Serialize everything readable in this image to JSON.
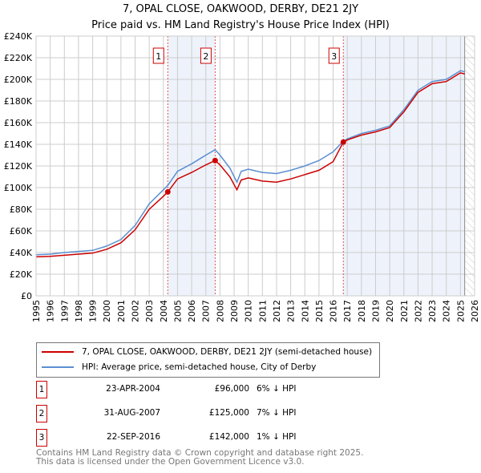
{
  "title": "7, OPAL CLOSE, OAKWOOD, DERBY, DE21 2JY",
  "subtitle": "Price paid vs. HM Land Registry's House Price Index (HPI)",
  "chart_data": {
    "type": "line",
    "ylim": [
      0,
      240000
    ],
    "xlim": [
      1995,
      2026
    ],
    "y_ticks": [
      "£0",
      "£20K",
      "£40K",
      "£60K",
      "£80K",
      "£100K",
      "£120K",
      "£140K",
      "£160K",
      "£180K",
      "£200K",
      "£220K",
      "£240K"
    ],
    "x_ticks": [
      "1995",
      "1996",
      "1997",
      "1998",
      "1999",
      "2000",
      "2001",
      "2002",
      "2003",
      "2004",
      "2005",
      "2006",
      "2007",
      "2008",
      "2009",
      "2010",
      "2011",
      "2012",
      "2013",
      "2014",
      "2015",
      "2016",
      "2017",
      "2018",
      "2019",
      "2020",
      "2021",
      "2022",
      "2023",
      "2024",
      "2025",
      "2026"
    ],
    "grid": true,
    "legend_placement": "below",
    "series": [
      {
        "name": "7, OPAL CLOSE, OAKWOOD, DERBY, DE21 2JY (semi-detached house)",
        "color": "#cc0000",
        "x": [
          1995,
          1996,
          1997,
          1998,
          1999,
          2000,
          2001,
          2002,
          2003,
          2004,
          2004.31,
          2005,
          2006,
          2007,
          2007.66,
          2008,
          2008.7,
          2009.2,
          2009.5,
          2010,
          2011,
          2012,
          2013,
          2014,
          2015,
          2016,
          2016.72,
          2017,
          2018,
          2019,
          2020,
          2021,
          2022,
          2023,
          2024,
          2025,
          2025.3
        ],
        "y": [
          36000,
          36500,
          37500,
          38500,
          39500,
          43000,
          49000,
          61000,
          80000,
          92000,
          96000,
          108000,
          114000,
          121000,
          125000,
          121000,
          110000,
          98000,
          107000,
          109000,
          106000,
          105000,
          108000,
          112000,
          116000,
          124000,
          142000,
          144000,
          148500,
          151500,
          155500,
          170000,
          188000,
          196000,
          198000,
          206000,
          205000
        ]
      },
      {
        "name": "HPI: Average price, semi-detached house, City of Derby",
        "color": "#5b8fd0",
        "x": [
          1995,
          1996,
          1997,
          1998,
          1999,
          2000,
          2001,
          2002,
          2003,
          2004,
          2004.31,
          2005,
          2006,
          2007,
          2007.66,
          2008,
          2008.7,
          2009.2,
          2009.5,
          2010,
          2011,
          2012,
          2013,
          2014,
          2015,
          2016,
          2016.72,
          2017,
          2018,
          2019,
          2020,
          2021,
          2022,
          2023,
          2024,
          2025,
          2025.3
        ],
        "y": [
          38000,
          38500,
          40000,
          41000,
          42000,
          46000,
          52000,
          65000,
          85000,
          98000,
          102000,
          115000,
          122000,
          130000,
          135000,
          130000,
          118000,
          105000,
          115000,
          117000,
          114000,
          113000,
          116000,
          120000,
          125000,
          133000,
          143000,
          145000,
          150000,
          153000,
          157000,
          172000,
          190000,
          198000,
          200000,
          208000,
          207000
        ]
      }
    ],
    "sales": [
      {
        "label": "1",
        "date": "23-APR-2004",
        "x": 2004.31,
        "price": 96000,
        "price_text": "£96,000",
        "hpi_text": "6% ↓ HPI"
      },
      {
        "label": "2",
        "date": "31-AUG-2007",
        "x": 2007.66,
        "price": 125000,
        "price_text": "£125,000",
        "hpi_text": "7% ↓ HPI"
      },
      {
        "label": "3",
        "date": "22-SEP-2016",
        "x": 2016.72,
        "price": 142000,
        "price_text": "£142,000",
        "hpi_text": "1% ↓ HPI"
      }
    ],
    "shaded_ranges": [
      [
        2004.31,
        2007.66
      ],
      [
        2016.72,
        2025.3
      ]
    ],
    "forecast_from": 2025.3
  },
  "legend": {
    "red": "7, OPAL CLOSE, OAKWOOD, DERBY, DE21 2JY (semi-detached house)",
    "blue": "HPI: Average price, semi-detached house, City of Derby"
  },
  "footer": [
    "Contains HM Land Registry data © Crown copyright and database right 2025.",
    "This data is licensed under the Open Government Licence v3.0."
  ]
}
